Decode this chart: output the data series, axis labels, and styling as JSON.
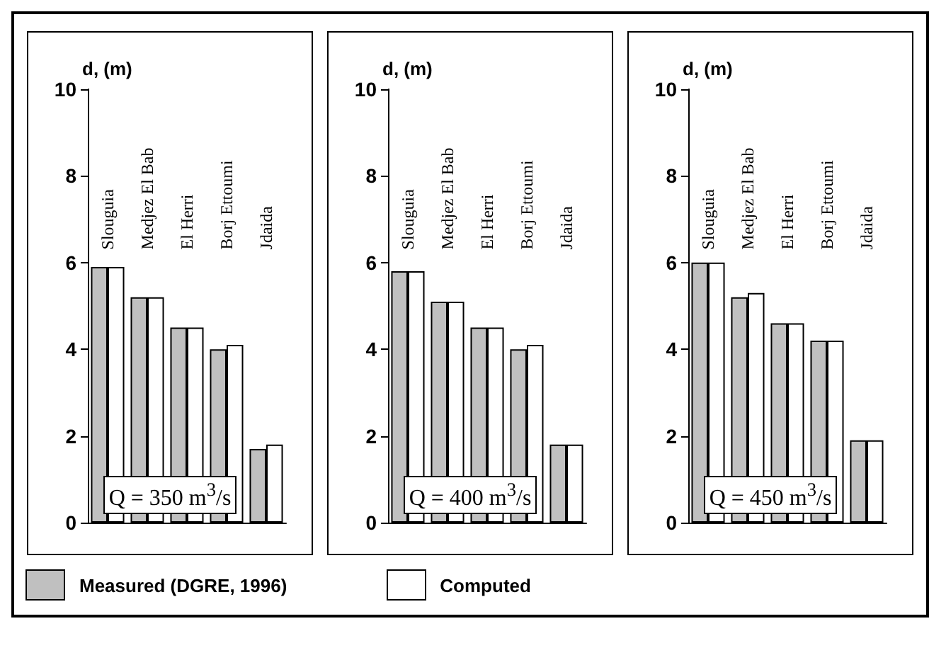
{
  "chart_data": [
    {
      "type": "bar",
      "ylabel": "d, (m)",
      "categories": [
        "Slouguia",
        "Medjez El Bab",
        "El Herri",
        "Borj Ettoumi",
        "Jdaida"
      ],
      "series": [
        {
          "name": "Measured (DGRE, 1996)",
          "color": "#c0c0c0",
          "values": [
            5.9,
            5.2,
            4.5,
            4.0,
            1.7
          ]
        },
        {
          "name": "Computed",
          "color": "#ffffff",
          "values": [
            5.9,
            5.2,
            4.5,
            4.1,
            1.8
          ]
        }
      ],
      "ylim": [
        0,
        10
      ],
      "yticks": [
        0,
        2,
        4,
        6,
        8,
        10
      ],
      "grid": false,
      "legend": "bottom",
      "annotations": [
        "Q = 350 m$^{3}$/s"
      ]
    },
    {
      "type": "bar",
      "ylabel": "d, (m)",
      "categories": [
        "Slouguia",
        "Medjez El Bab",
        "El Herri",
        "Borj Ettoumi",
        "Jdaida"
      ],
      "series": [
        {
          "color": "#c0c0c0",
          "values": [
            5.8,
            5.1,
            4.5,
            4.0,
            1.8
          ]
        },
        {
          "color": "#ffffff",
          "values": [
            5.8,
            5.1,
            4.5,
            4.1,
            1.8
          ]
        }
      ],
      "ylim": [
        0,
        10
      ],
      "yticks": [
        0,
        2,
        4,
        6,
        8,
        10
      ],
      "grid": false,
      "annotations": [
        "Q = 400 m$^{3}$/s"
      ]
    },
    {
      "type": "bar",
      "ylabel": "d, (m)",
      "categories": [
        "Slouguia",
        "Medjez El Bab",
        "El Herri",
        "Borj Ettoumi",
        "Jdaida"
      ],
      "series": [
        {
          "color": "#c0c0c0",
          "values": [
            6.0,
            5.2,
            4.6,
            4.2,
            1.9
          ]
        },
        {
          "color": "#ffffff",
          "values": [
            6.0,
            5.3,
            4.6,
            4.2,
            1.9
          ]
        }
      ],
      "ylim": [
        0,
        10
      ],
      "yticks": [
        0,
        2,
        4,
        6,
        8,
        10
      ],
      "grid": false,
      "annotations": [
        "Q = 450 m$^{3}$/s"
      ]
    }
  ]
}
